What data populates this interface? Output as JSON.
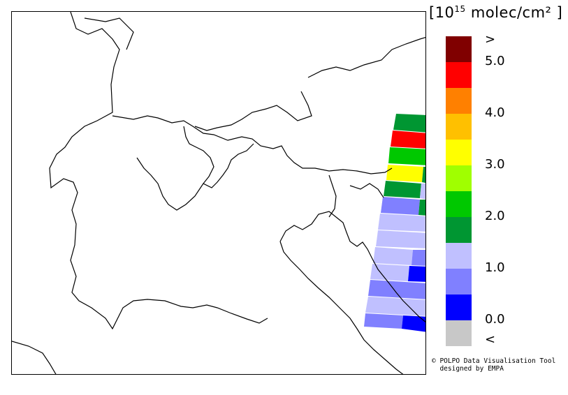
{
  "legend": {
    "title_open": "[10",
    "title_exp": "15",
    "title_unit": " molec/cm² ]",
    "colors": [
      "#800000",
      "#ff0000",
      "#ff8000",
      "#ffc000",
      "#ffff00",
      "#a0ff00",
      "#00c800",
      "#009632",
      "#c0c0ff",
      "#8080ff",
      "#0000ff",
      "#c8c8c8"
    ],
    "labels": [
      {
        "text": ">",
        "row": 0
      },
      {
        "text": "5.0",
        "row": 1
      },
      {
        "text": "4.0",
        "row": 3
      },
      {
        "text": "3.0",
        "row": 5
      },
      {
        "text": "2.0",
        "row": 7
      },
      {
        "text": "1.0",
        "row": 9
      },
      {
        "text": "0.0",
        "row": 11
      },
      {
        "text": "<",
        "row": 12
      }
    ]
  },
  "credit": {
    "line1": "© POLPO Data Visualisation Tool",
    "line2": "  designed by EMPA"
  },
  "chart_data": {
    "type": "heatmap",
    "description_units": "10^15 molec/cm²",
    "pixels": [
      {
        "value": 2.1
      },
      {
        "value": 5.1
      },
      {
        "value": 2.3
      },
      {
        "value": 3.2
      },
      {
        "value": 1.9
      },
      {
        "value": 1.0
      },
      {
        "value": 1.2
      },
      {
        "value": 1.1
      },
      {
        "value": 1.2
      },
      {
        "value": 1.3
      },
      {
        "value": 0.7
      },
      {
        "value": 0.6
      },
      {
        "value": 0.2
      },
      {
        "value": 0.7
      },
      {
        "value": 0.8
      },
      {
        "value": 0.3
      }
    ]
  }
}
